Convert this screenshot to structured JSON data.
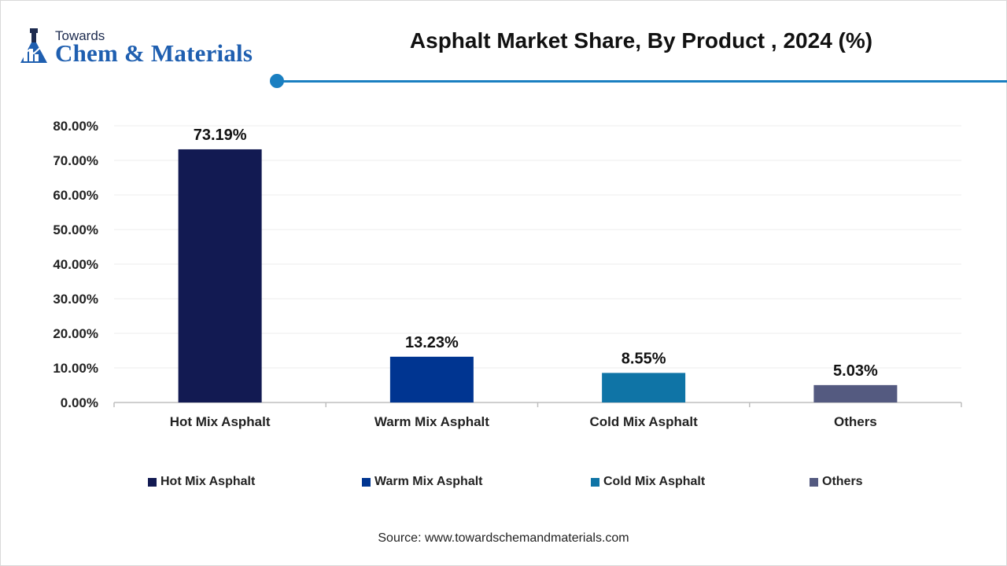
{
  "brand": {
    "towards": "Towards",
    "name": "Chem & Materials"
  },
  "chart_data": {
    "type": "bar",
    "title": "Asphalt Market Share, By Product , 2024 (%)",
    "categories": [
      "Hot Mix Asphalt",
      "Warm Mix Asphalt",
      "Cold Mix Asphalt",
      "Others"
    ],
    "values": [
      73.19,
      13.23,
      8.55,
      5.03
    ],
    "data_labels": [
      "73.19%",
      "13.23%",
      "8.55%",
      "5.03%"
    ],
    "colors": [
      "#121a52",
      "#003591",
      "#0f74a6",
      "#545a80"
    ],
    "ylim": [
      0,
      80
    ],
    "yticks": [
      0,
      10,
      20,
      30,
      40,
      50,
      60,
      70,
      80
    ],
    "ytick_labels": [
      "0.00%",
      "10.00%",
      "20.00%",
      "30.00%",
      "40.00%",
      "50.00%",
      "60.00%",
      "70.00%",
      "80.00%"
    ],
    "xlabel": "",
    "ylabel": "",
    "grid": true,
    "legend_position": "bottom"
  },
  "legend": [
    {
      "label": "Hot Mix Asphalt",
      "color": "#121a52"
    },
    {
      "label": "Warm Mix Asphalt",
      "color": "#003591"
    },
    {
      "label": "Cold Mix Asphalt",
      "color": "#0f74a6"
    },
    {
      "label": "Others",
      "color": "#545a80"
    }
  ],
  "source": "Source: www.towardschemandmaterials.com"
}
